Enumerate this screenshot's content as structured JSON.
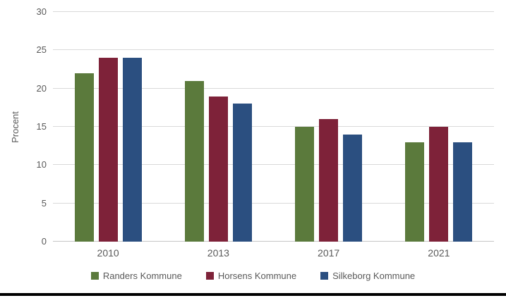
{
  "chart_data": {
    "type": "bar",
    "categories": [
      "2010",
      "2013",
      "2017",
      "2021"
    ],
    "series": [
      {
        "name": "Randers Kommune",
        "color": "#5B7A3C",
        "values": [
          22,
          21,
          15,
          13
        ]
      },
      {
        "name": "Horsens Kommune",
        "color": "#7E2239",
        "values": [
          24,
          19,
          16,
          15
        ]
      },
      {
        "name": "Silkeborg Kommune",
        "color": "#2B4F80",
        "values": [
          24,
          18,
          14,
          13
        ]
      }
    ],
    "title": "",
    "xlabel": "",
    "ylabel": "Procent",
    "ylim": [
      0,
      30
    ],
    "ytick_interval": 5,
    "ytick_labels": [
      "0",
      "5",
      "10",
      "15",
      "20",
      "25",
      "30"
    ],
    "grid": true,
    "legend_position": "bottom"
  },
  "colors": {
    "gridline": "#d9d9d9",
    "axis_line": "#c6c6c6",
    "axis_text": "#595959",
    "bottom_rule": "#000000",
    "background": "#ffffff"
  }
}
